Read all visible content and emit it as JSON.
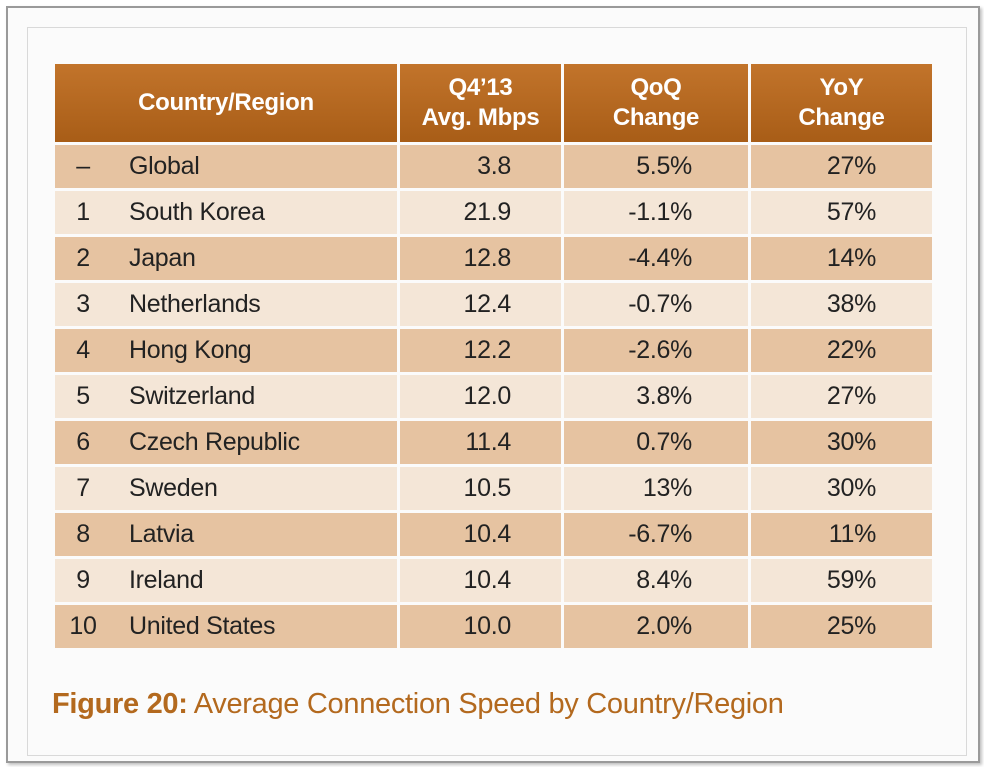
{
  "table": {
    "headers": {
      "country": "Country/Region",
      "q4_line1": "Q4’13",
      "q4_line2": "Avg. Mbps",
      "qoq_line1": "QoQ",
      "qoq_line2": "Change",
      "yoy_line1": "YoY",
      "yoy_line2": "Change"
    },
    "rows": [
      {
        "rank": "–",
        "country": "Global",
        "mbps": "3.8",
        "qoq": "5.5%",
        "yoy": "27%"
      },
      {
        "rank": "1",
        "country": "South Korea",
        "mbps": "21.9",
        "qoq": "-1.1%",
        "yoy": "57%"
      },
      {
        "rank": "2",
        "country": "Japan",
        "mbps": "12.8",
        "qoq": "-4.4%",
        "yoy": "14%"
      },
      {
        "rank": "3",
        "country": "Netherlands",
        "mbps": "12.4",
        "qoq": "-0.7%",
        "yoy": "38%"
      },
      {
        "rank": "4",
        "country": "Hong Kong",
        "mbps": "12.2",
        "qoq": "-2.6%",
        "yoy": "22%"
      },
      {
        "rank": "5",
        "country": "Switzerland",
        "mbps": "12.0",
        "qoq": "3.8%",
        "yoy": "27%"
      },
      {
        "rank": "6",
        "country": "Czech Republic",
        "mbps": "11.4",
        "qoq": "0.7%",
        "yoy": "30%"
      },
      {
        "rank": "7",
        "country": "Sweden",
        "mbps": "10.5",
        "qoq": "13%",
        "yoy": "30%"
      },
      {
        "rank": "8",
        "country": "Latvia",
        "mbps": "10.4",
        "qoq": "-6.7%",
        "yoy": "11%"
      },
      {
        "rank": "9",
        "country": "Ireland",
        "mbps": "10.4",
        "qoq": "8.4%",
        "yoy": "59%"
      },
      {
        "rank": "10",
        "country": "United States",
        "mbps": "10.0",
        "qoq": "2.0%",
        "yoy": "25%"
      }
    ]
  },
  "caption": {
    "label": "Figure 20:",
    "text": " Average Connection Speed by Country/Region"
  },
  "colors": {
    "header_bg": "#b0641d",
    "row_dark": "#e6c3a1",
    "row_light": "#f4e6d7",
    "caption": "#b3691e"
  }
}
